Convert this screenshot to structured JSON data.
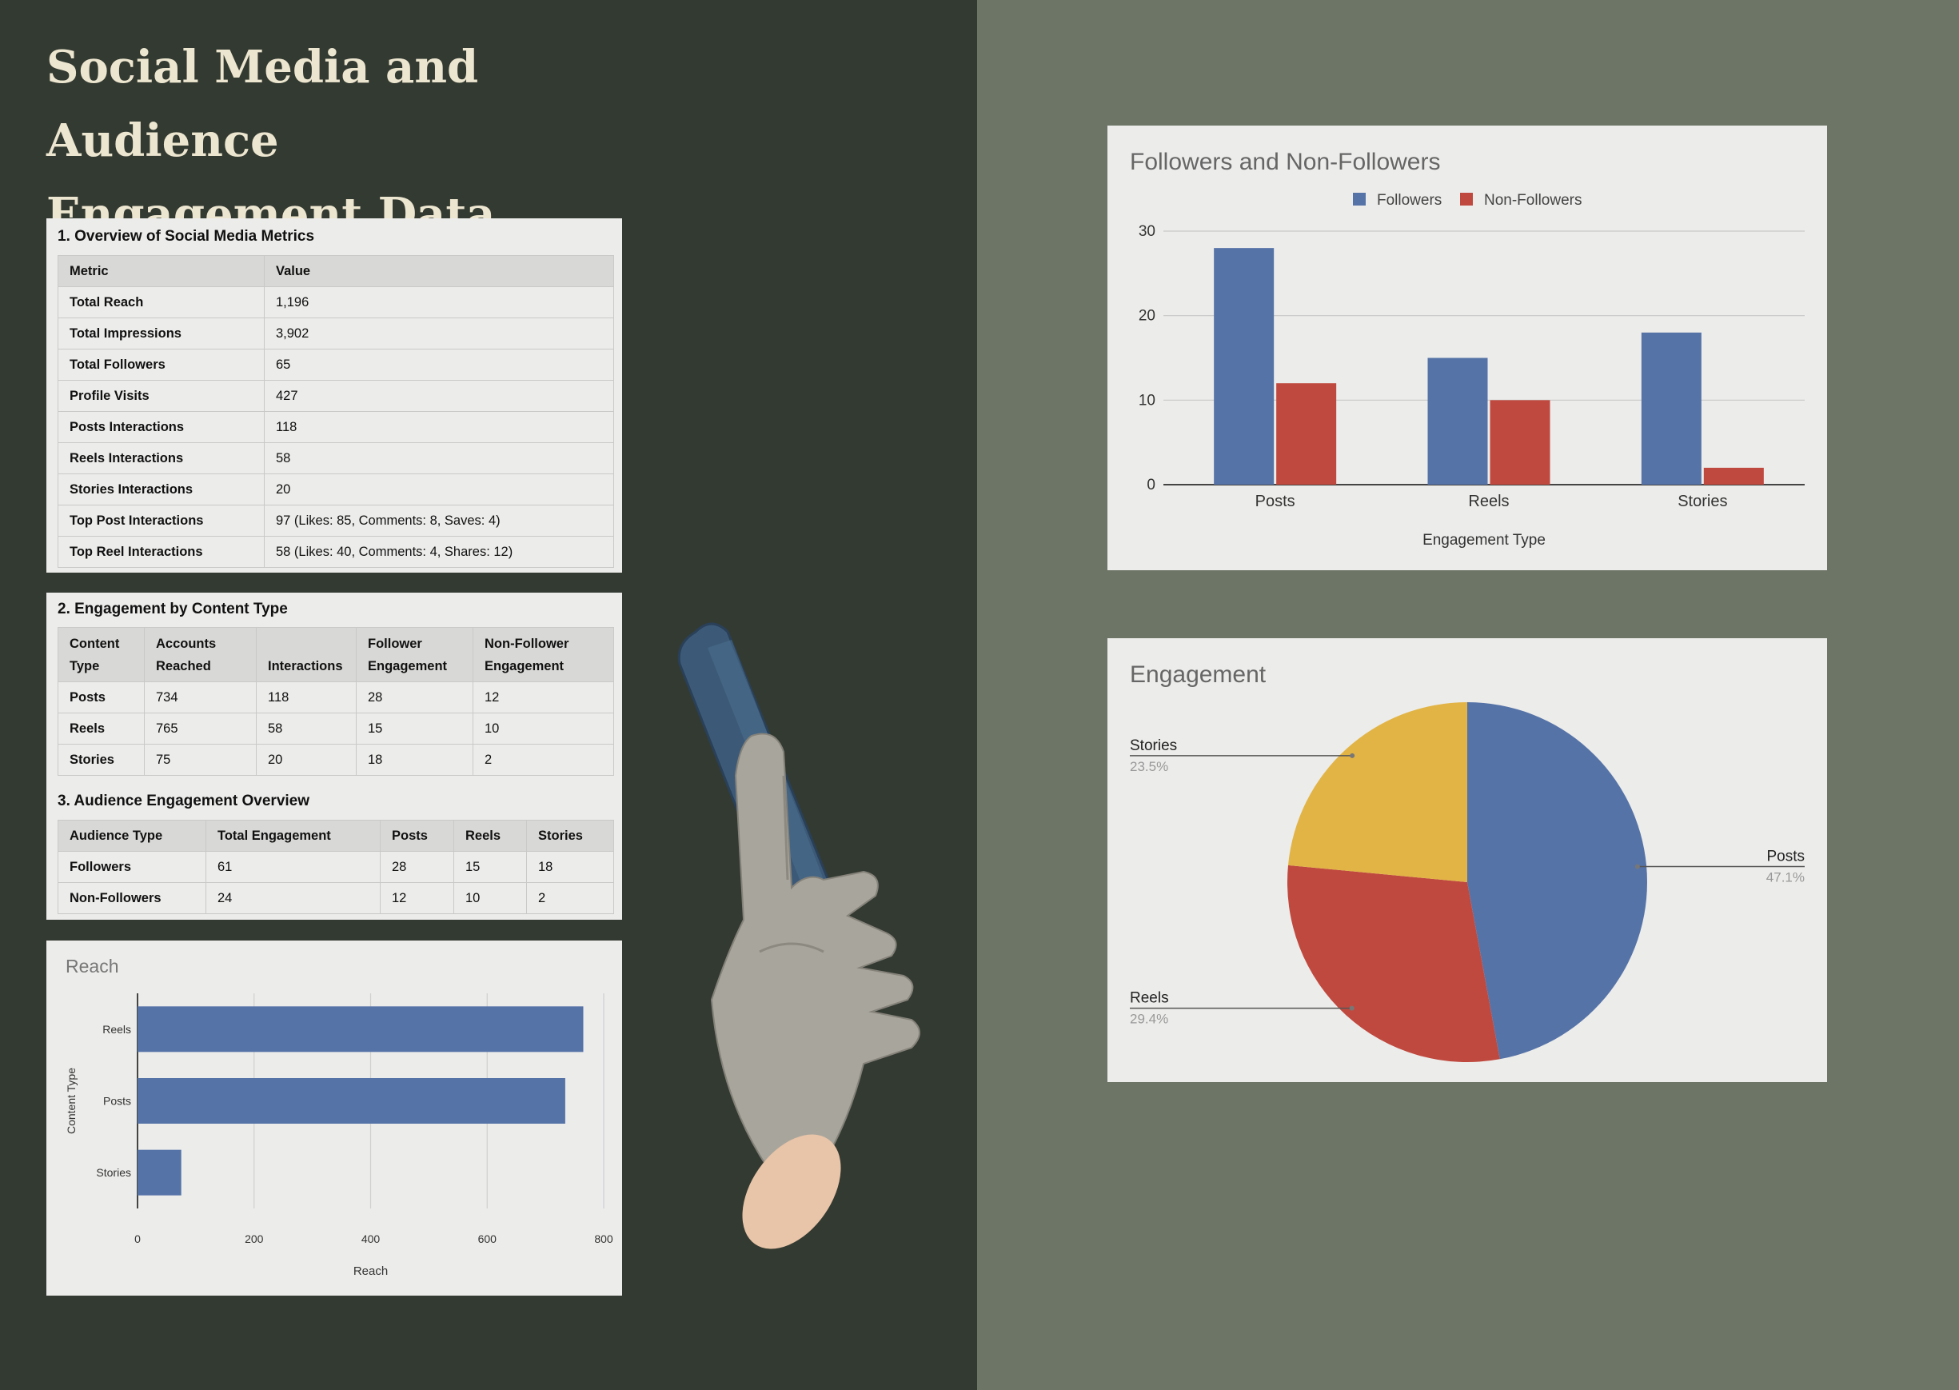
{
  "page_title_line1": "Social Media and Audience",
  "page_title_line2": "Engagement Data",
  "colors": {
    "left_bg": "#333a31",
    "right_bg": "#6d7566",
    "title": "#ece5cf",
    "card": "#ececea",
    "blue": "#5673a8",
    "red": "#c0493f",
    "yellow": "#e2b446",
    "chart_title": "#666666"
  },
  "table1": {
    "title": "1. Overview of Social Media Metrics",
    "headers": [
      "Metric",
      "Value"
    ],
    "rows": [
      [
        "Total Reach",
        "1,196"
      ],
      [
        "Total Impressions",
        "3,902"
      ],
      [
        "Total Followers",
        "65"
      ],
      [
        "Profile Visits",
        "427"
      ],
      [
        "Posts Interactions",
        "118"
      ],
      [
        "Reels Interactions",
        "58"
      ],
      [
        "Stories Interactions",
        "20"
      ],
      [
        "Top Post Interactions",
        "97 (Likes: 85, Comments: 8, Saves: 4)"
      ],
      [
        "Top Reel Interactions",
        "58 (Likes: 40, Comments: 4, Shares: 12)"
      ]
    ]
  },
  "table2": {
    "title": "2. Engagement by Content Type",
    "headers": [
      [
        "Content",
        "Type"
      ],
      [
        "Accounts",
        "Reached"
      ],
      [
        "",
        "Interactions"
      ],
      [
        "Follower",
        "Engagement"
      ],
      [
        "Non-Follower",
        "Engagement"
      ]
    ],
    "rows": [
      [
        "Posts",
        "734",
        "118",
        "28",
        "12"
      ],
      [
        "Reels",
        "765",
        "58",
        "15",
        "10"
      ],
      [
        "Stories",
        "75",
        "20",
        "18",
        "2"
      ]
    ]
  },
  "table3": {
    "title": "3. Audience Engagement Overview",
    "headers": [
      "Audience Type",
      "Total Engagement",
      "Posts",
      "Reels",
      "Stories"
    ],
    "rows": [
      [
        "Followers",
        "61",
        "28",
        "15",
        "18"
      ],
      [
        "Non-Followers",
        "24",
        "12",
        "10",
        "2"
      ]
    ]
  },
  "chart_data": [
    {
      "id": "followers",
      "type": "bar",
      "title": "Followers and Non-Followers",
      "xlabel": "Engagement Type",
      "ylabel": "",
      "categories": [
        "Posts",
        "Reels",
        "Stories"
      ],
      "series": [
        {
          "name": "Followers",
          "values": [
            28,
            15,
            18
          ],
          "color": "#5673a8"
        },
        {
          "name": "Non-Followers",
          "values": [
            12,
            10,
            2
          ],
          "color": "#c0493f"
        }
      ],
      "ylim": [
        0,
        30
      ],
      "yticks": [
        "0",
        "10",
        "20",
        "30"
      ],
      "grid": true,
      "legend": "top"
    },
    {
      "id": "engagement",
      "type": "pie",
      "title": "Engagement",
      "slices": [
        {
          "label": "Posts",
          "value": 47.1,
          "pct_label": "47.1%",
          "color": "#5673a8"
        },
        {
          "label": "Reels",
          "value": 29.4,
          "pct_label": "29.4%",
          "color": "#c0493f"
        },
        {
          "label": "Stories",
          "value": 23.5,
          "pct_label": "23.5%",
          "color": "#e2b446"
        }
      ],
      "legend": "labels"
    },
    {
      "id": "reach",
      "type": "bar",
      "orientation": "horizontal",
      "title": "Reach",
      "xlabel": "Reach",
      "ylabel": "Content Type",
      "categories": [
        "Reels",
        "Posts",
        "Stories"
      ],
      "values": [
        765,
        734,
        75
      ],
      "color": "#5673a8",
      "xlim": [
        0,
        800
      ],
      "xticks": [
        "0",
        "200",
        "400",
        "600",
        "800"
      ],
      "grid": true
    }
  ]
}
